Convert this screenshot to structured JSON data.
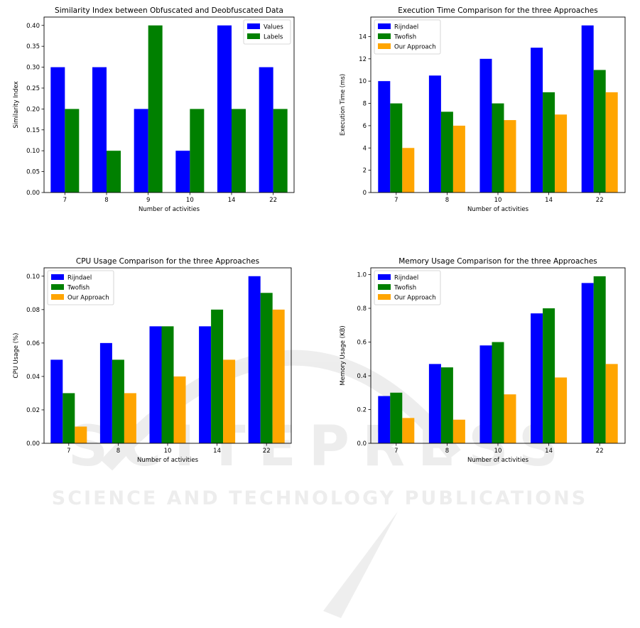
{
  "colors": {
    "blue": "#0000ff",
    "green": "#008000",
    "orange": "#ffa500"
  },
  "watermark": {
    "brand": "SCITEPRESS",
    "tagline": "SCIENCE AND TECHNOLOGY PUBLICATIONS"
  },
  "chart_data": [
    {
      "type": "bar",
      "title": "Similarity Index between Obfuscated and Deobfuscated Data",
      "xlabel": "Number of activities",
      "ylabel": "Similarity Index",
      "categories": [
        "7",
        "8",
        "9",
        "10",
        "14",
        "22"
      ],
      "ylim": [
        0,
        0.42
      ],
      "yticks": [
        0.0,
        0.05,
        0.1,
        0.15,
        0.2,
        0.25,
        0.3,
        0.35,
        0.4
      ],
      "ytick_labels": [
        "0.00",
        "0.05",
        "0.10",
        "0.15",
        "0.20",
        "0.25",
        "0.30",
        "0.35",
        "0.40"
      ],
      "legend_position": "top-right",
      "series": [
        {
          "name": "Values",
          "color": "#0000ff",
          "values": [
            0.3,
            0.3,
            0.2,
            0.1,
            0.4,
            0.3
          ]
        },
        {
          "name": "Labels",
          "color": "#008000",
          "values": [
            0.2,
            0.1,
            0.4,
            0.2,
            0.2,
            0.2
          ]
        }
      ]
    },
    {
      "type": "bar",
      "title": "Execution Time Comparison for the three Approaches",
      "xlabel": "Number of activities",
      "ylabel": "Execution Time (ms)",
      "categories": [
        "7",
        "8",
        "10",
        "14",
        "22"
      ],
      "ylim": [
        0,
        15.75
      ],
      "yticks": [
        0,
        2,
        4,
        6,
        8,
        10,
        12,
        14
      ],
      "ytick_labels": [
        "0",
        "2",
        "4",
        "6",
        "8",
        "10",
        "12",
        "14"
      ],
      "legend_position": "top-left",
      "series": [
        {
          "name": "Rijndael",
          "color": "#0000ff",
          "values": [
            10,
            10.5,
            12,
            13,
            15
          ]
        },
        {
          "name": "Twofish",
          "color": "#008000",
          "values": [
            8,
            7.25,
            8,
            9,
            11
          ]
        },
        {
          "name": "Our Approach",
          "color": "#ffa500",
          "values": [
            4,
            6,
            6.5,
            7,
            9
          ]
        }
      ]
    },
    {
      "type": "bar",
      "title": "CPU Usage Comparison for the three Approaches",
      "xlabel": "Number of activities",
      "ylabel": "CPU Usage (%)",
      "categories": [
        "7",
        "8",
        "10",
        "14",
        "22"
      ],
      "ylim": [
        0,
        0.105
      ],
      "yticks": [
        0.0,
        0.02,
        0.04,
        0.06,
        0.08,
        0.1
      ],
      "ytick_labels": [
        "0.00",
        "0.02",
        "0.04",
        "0.06",
        "0.08",
        "0.10"
      ],
      "legend_position": "top-left",
      "series": [
        {
          "name": "Rijndael",
          "color": "#0000ff",
          "values": [
            0.05,
            0.06,
            0.07,
            0.07,
            0.1
          ]
        },
        {
          "name": "Twofish",
          "color": "#008000",
          "values": [
            0.03,
            0.05,
            0.07,
            0.08,
            0.09
          ]
        },
        {
          "name": "Our Approach",
          "color": "#ffa500",
          "values": [
            0.01,
            0.03,
            0.04,
            0.05,
            0.08
          ]
        }
      ]
    },
    {
      "type": "bar",
      "title": "Memory Usage Comparison for the three Approaches",
      "xlabel": "Number of activities",
      "ylabel": "Memory Usage (KB)",
      "categories": [
        "7",
        "8",
        "10",
        "14",
        "22"
      ],
      "ylim": [
        0,
        1.04
      ],
      "yticks": [
        0.0,
        0.2,
        0.4,
        0.6,
        0.8,
        1.0
      ],
      "ytick_labels": [
        "0.0",
        "0.2",
        "0.4",
        "0.6",
        "0.8",
        "1.0"
      ],
      "legend_position": "top-left",
      "series": [
        {
          "name": "Rijndael",
          "color": "#0000ff",
          "values": [
            0.28,
            0.47,
            0.58,
            0.77,
            0.95
          ]
        },
        {
          "name": "Twofish",
          "color": "#008000",
          "values": [
            0.3,
            0.45,
            0.6,
            0.8,
            0.99
          ]
        },
        {
          "name": "Our Approach",
          "color": "#ffa500",
          "values": [
            0.15,
            0.14,
            0.29,
            0.39,
            0.47
          ]
        }
      ]
    }
  ]
}
